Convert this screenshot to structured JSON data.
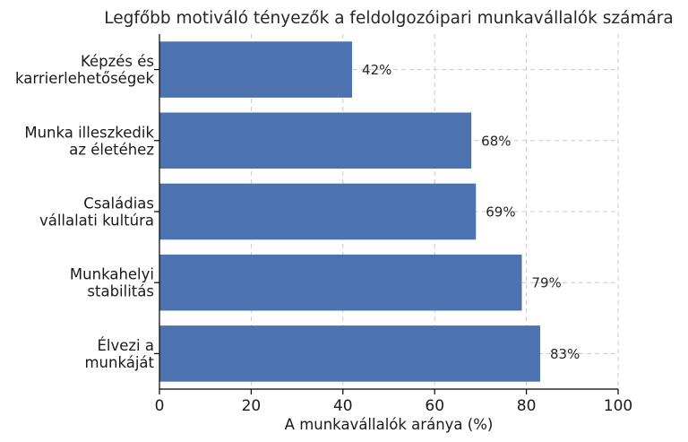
{
  "chart_data": {
    "type": "bar",
    "orientation": "horizontal",
    "title": "Legfőbb motiváló tényezők a feldolgozóipari munkavállalók számára",
    "xlabel": "A munkavállalók aránya (%)",
    "ylabel": "",
    "xlim": [
      0,
      100
    ],
    "xticks": [
      0,
      20,
      40,
      60,
      80,
      100
    ],
    "grid": true,
    "bar_color": "#4c72b0",
    "categories": [
      [
        "Képzés és",
        "karrierlehetőségek"
      ],
      [
        "Munka illeszkedik",
        "az életéhez"
      ],
      [
        "Családias",
        "vállalati kultúra"
      ],
      [
        "Munkahelyi",
        "stabilitás"
      ],
      [
        "Élvezi a",
        "munkáját"
      ]
    ],
    "values": [
      42,
      68,
      69,
      79,
      83
    ],
    "value_labels": [
      "42%",
      "68%",
      "69%",
      "79%",
      "83%"
    ]
  }
}
